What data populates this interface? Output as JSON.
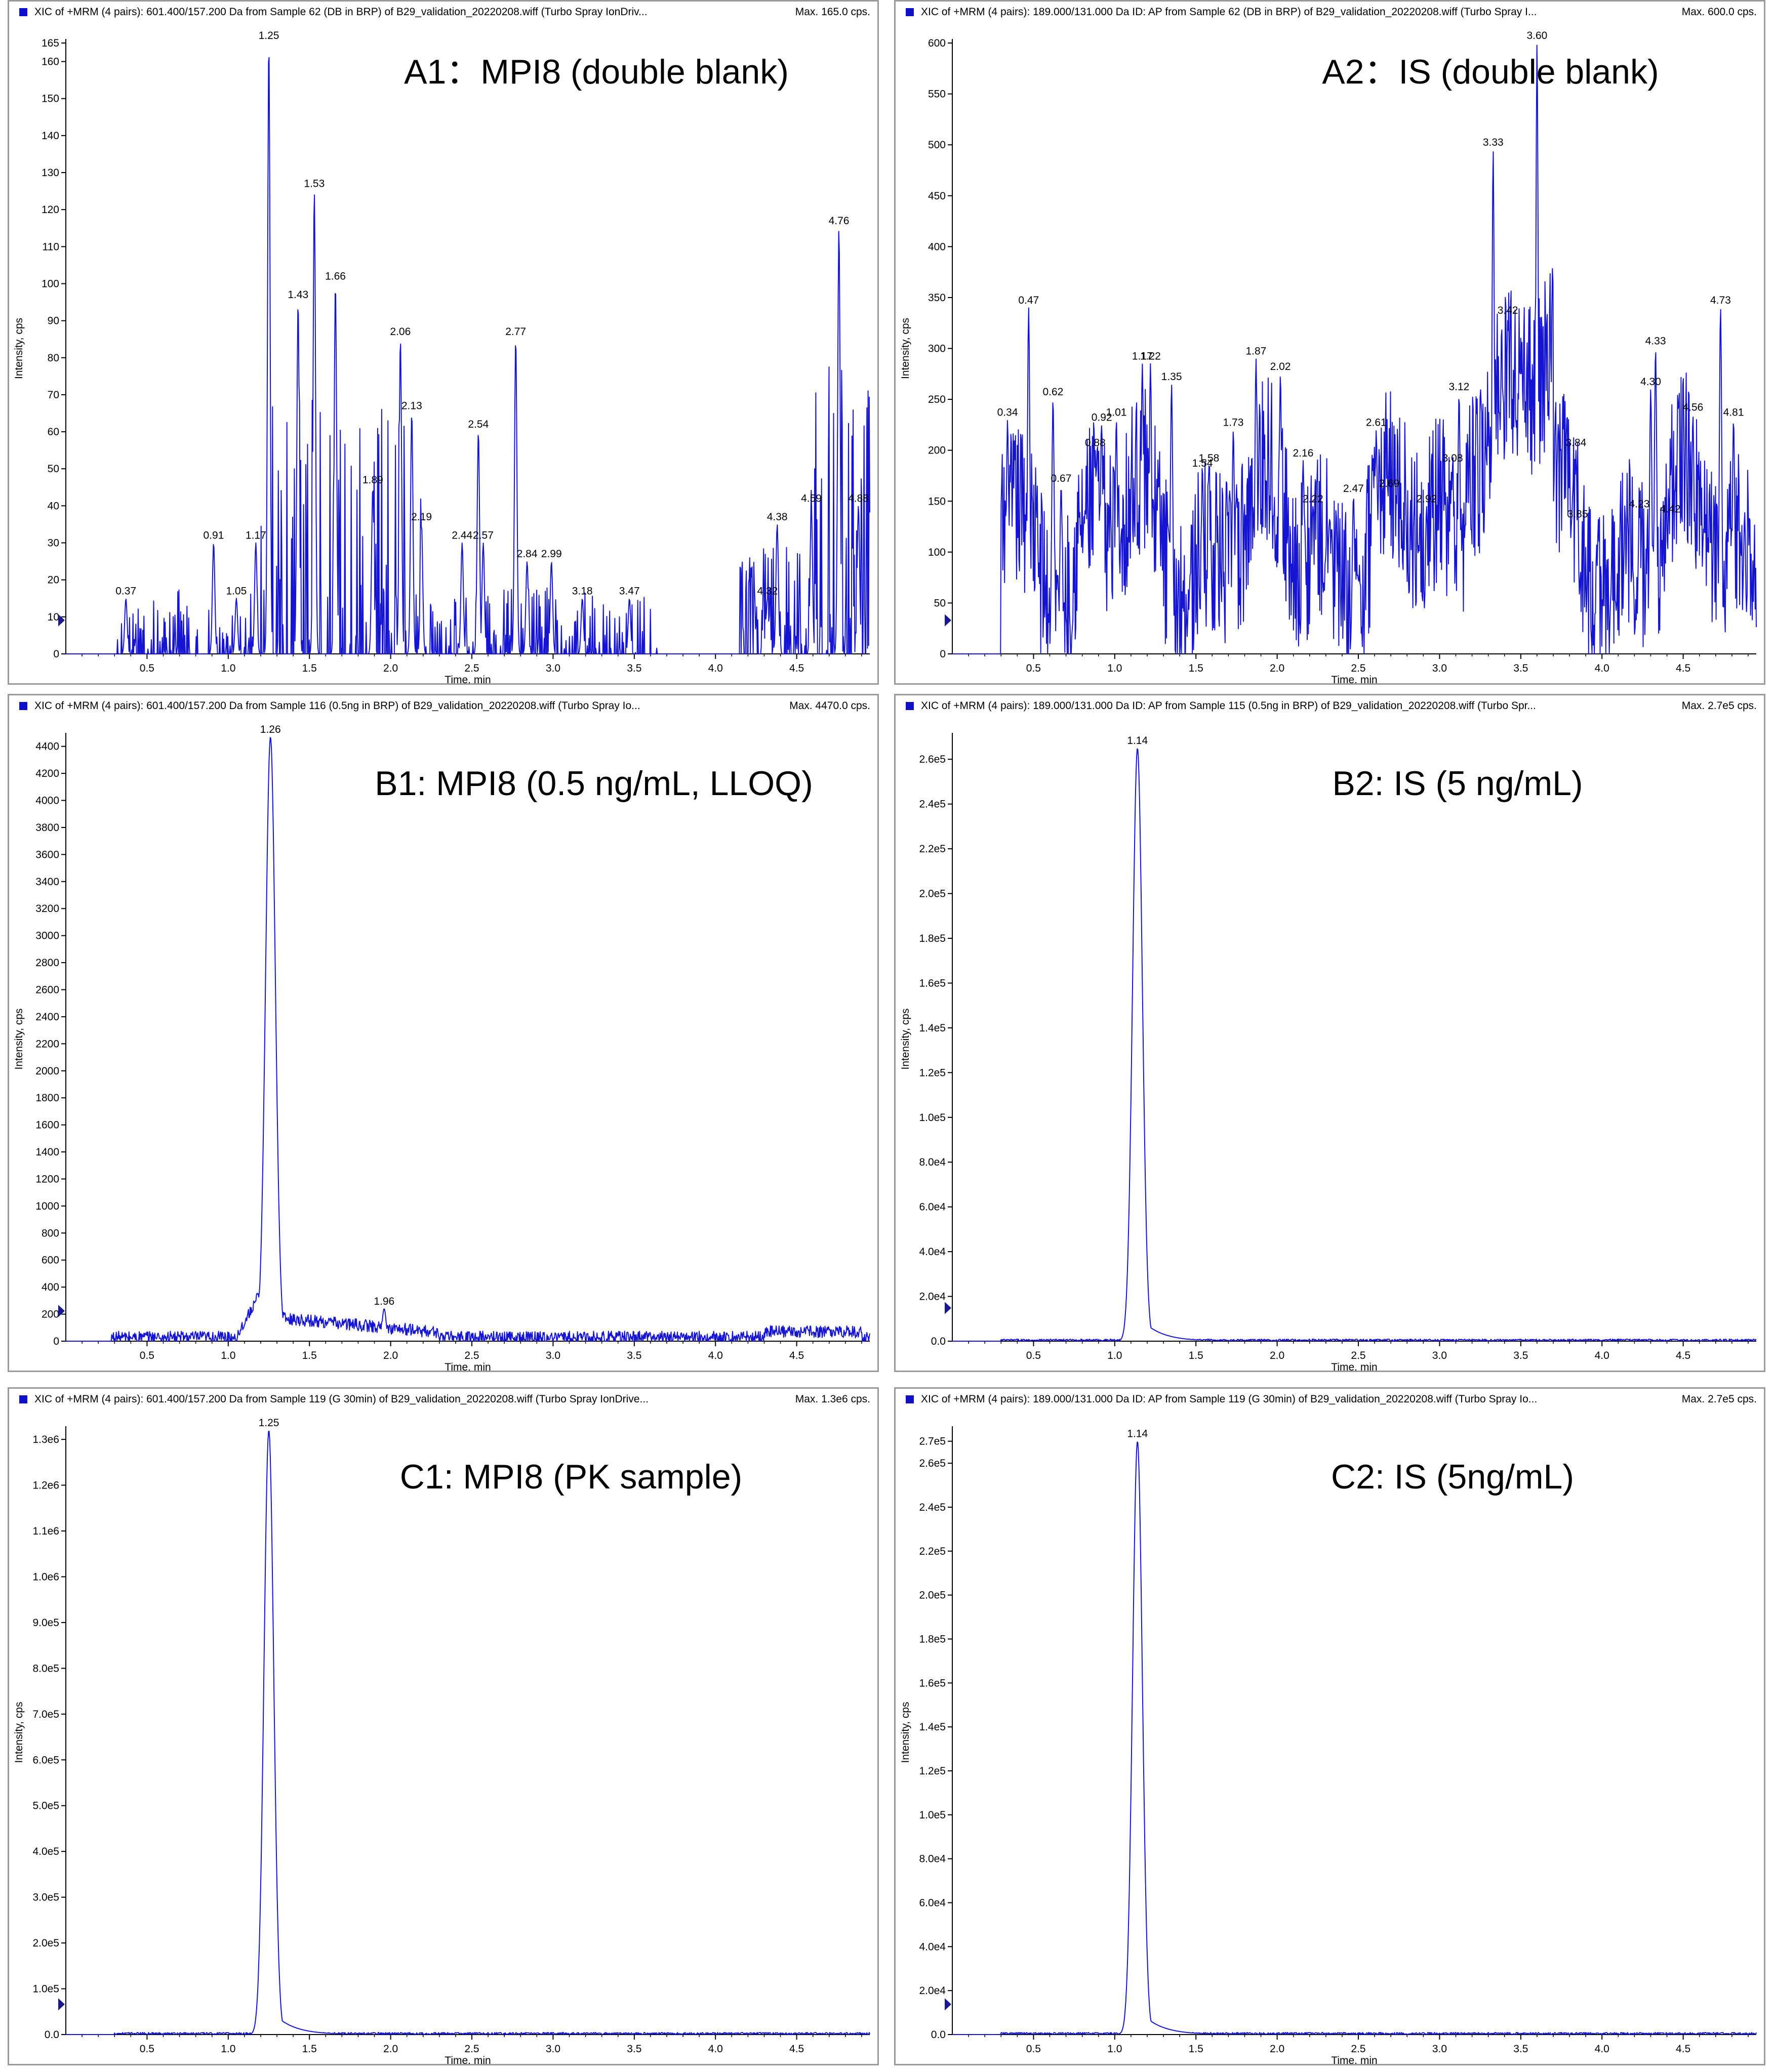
{
  "chart_data": [
    {
      "id": "A1",
      "type": "line",
      "header": "XIC of +MRM (4 pairs): 601.400/157.200 Da  from Sample 62 (DB in BRP) of B29_validation_20220208.wiff (Turbo Spray IonDriv...",
      "max_text": "Max. 165.0 cps.",
      "title": "A1：MPI8 (double blank)",
      "xlabel": "Time, min",
      "ylabel": "Intensity, cps",
      "xlim": [
        0,
        4.95
      ],
      "ylim": [
        0,
        165
      ],
      "x_ticks": [
        "0.5",
        "1.0",
        "1.5",
        "2.0",
        "2.5",
        "3.0",
        "3.5",
        "4.0",
        "4.5"
      ],
      "y_ticks": [
        "0",
        "10",
        "20",
        "30",
        "40",
        "50",
        "60",
        "70",
        "80",
        "90",
        "100",
        "110",
        "120",
        "130",
        "140",
        "150",
        "160",
        "165"
      ],
      "noise": "blank",
      "peaks": [
        {
          "x": 0.37,
          "y": 15,
          "label": "0.37"
        },
        {
          "x": 0.91,
          "y": 30,
          "label": "0.91"
        },
        {
          "x": 1.05,
          "y": 15,
          "label": "1.05"
        },
        {
          "x": 1.17,
          "y": 30,
          "label": "1.17"
        },
        {
          "x": 1.25,
          "y": 165,
          "label": "1.25"
        },
        {
          "x": 1.43,
          "y": 95,
          "label": "1.43"
        },
        {
          "x": 1.53,
          "y": 125,
          "label": "1.53"
        },
        {
          "x": 1.66,
          "y": 100,
          "label": "1.66"
        },
        {
          "x": 1.89,
          "y": 45,
          "label": "1.89"
        },
        {
          "x": 2.06,
          "y": 85,
          "label": "2.06"
        },
        {
          "x": 2.13,
          "y": 65,
          "label": "2.13"
        },
        {
          "x": 2.19,
          "y": 35,
          "label": "2.19"
        },
        {
          "x": 2.44,
          "y": 30,
          "label": "2.44"
        },
        {
          "x": 2.54,
          "y": 60,
          "label": "2.54"
        },
        {
          "x": 2.57,
          "y": 30,
          "label": "2.57"
        },
        {
          "x": 2.77,
          "y": 85,
          "label": "2.77"
        },
        {
          "x": 2.84,
          "y": 25,
          "label": "2.84"
        },
        {
          "x": 2.99,
          "y": 25,
          "label": "2.99"
        },
        {
          "x": 3.18,
          "y": 15,
          "label": "3.18"
        },
        {
          "x": 3.47,
          "y": 15,
          "label": "3.47"
        },
        {
          "x": 4.32,
          "y": 15,
          "label": "4.32"
        },
        {
          "x": 4.38,
          "y": 35,
          "label": "4.38"
        },
        {
          "x": 4.59,
          "y": 40,
          "label": "4.59"
        },
        {
          "x": 4.76,
          "y": 115,
          "label": "4.76"
        },
        {
          "x": 4.88,
          "y": 40,
          "label": "4.88"
        }
      ]
    },
    {
      "id": "A2",
      "type": "line",
      "header": "XIC of +MRM (4 pairs): 189.000/131.000 Da ID: AP from Sample 62 (DB in BRP) of B29_validation_20220208.wiff (Turbo Spray I...",
      "max_text": "Max. 600.0 cps.",
      "title": "A2：IS (double blank)",
      "xlabel": "Time, min",
      "ylabel": "Intensity, cps",
      "xlim": [
        0,
        4.95
      ],
      "ylim": [
        0,
        600
      ],
      "x_ticks": [
        "0.5",
        "1.0",
        "1.5",
        "2.0",
        "2.5",
        "3.0",
        "3.5",
        "4.0",
        "4.5"
      ],
      "y_ticks": [
        "0",
        "50",
        "100",
        "150",
        "200",
        "250",
        "300",
        "350",
        "400",
        "450",
        "500",
        "550",
        "600"
      ],
      "noise": "blank-is",
      "peaks": [
        {
          "x": 0.34,
          "y": 230,
          "label": "0.34"
        },
        {
          "x": 0.47,
          "y": 340,
          "label": "0.47"
        },
        {
          "x": 0.62,
          "y": 250,
          "label": "0.62"
        },
        {
          "x": 0.67,
          "y": 165,
          "label": "0.67"
        },
        {
          "x": 0.88,
          "y": 200,
          "label": "0.88"
        },
        {
          "x": 0.92,
          "y": 225,
          "label": "0.92"
        },
        {
          "x": 1.01,
          "y": 230,
          "label": "1.01"
        },
        {
          "x": 1.17,
          "y": 285,
          "label": "1.17"
        },
        {
          "x": 1.22,
          "y": 285,
          "label": "1.22"
        },
        {
          "x": 1.35,
          "y": 265,
          "label": "1.35"
        },
        {
          "x": 1.54,
          "y": 180,
          "label": "1.54"
        },
        {
          "x": 1.58,
          "y": 185,
          "label": "1.58"
        },
        {
          "x": 1.73,
          "y": 220,
          "label": "1.73"
        },
        {
          "x": 1.87,
          "y": 290,
          "label": "1.87"
        },
        {
          "x": 2.02,
          "y": 275,
          "label": "2.02"
        },
        {
          "x": 2.16,
          "y": 190,
          "label": "2.16"
        },
        {
          "x": 2.22,
          "y": 145,
          "label": "2.22"
        },
        {
          "x": 2.47,
          "y": 155,
          "label": "2.47"
        },
        {
          "x": 2.61,
          "y": 220,
          "label": "2.61"
        },
        {
          "x": 2.69,
          "y": 160,
          "label": "2.69"
        },
        {
          "x": 2.92,
          "y": 145,
          "label": "2.92"
        },
        {
          "x": 3.08,
          "y": 185,
          "label": "3.08"
        },
        {
          "x": 3.12,
          "y": 255,
          "label": "3.12"
        },
        {
          "x": 3.33,
          "y": 495,
          "label": "3.33"
        },
        {
          "x": 3.42,
          "y": 330,
          "label": "3.42"
        },
        {
          "x": 3.6,
          "y": 600,
          "label": "3.60"
        },
        {
          "x": 3.84,
          "y": 200,
          "label": "3.84"
        },
        {
          "x": 3.85,
          "y": 130,
          "label": "3.85"
        },
        {
          "x": 4.23,
          "y": 140,
          "label": "4.23"
        },
        {
          "x": 4.3,
          "y": 260,
          "label": "4.30"
        },
        {
          "x": 4.33,
          "y": 300,
          "label": "4.33"
        },
        {
          "x": 4.42,
          "y": 135,
          "label": "4.42"
        },
        {
          "x": 4.56,
          "y": 235,
          "label": "4.56"
        },
        {
          "x": 4.73,
          "y": 340,
          "label": "4.73"
        },
        {
          "x": 4.81,
          "y": 230,
          "label": "4.81"
        }
      ]
    },
    {
      "id": "B1",
      "type": "line",
      "header": "XIC of +MRM (4 pairs): 601.400/157.200 Da  from Sample 116 (0.5ng in BRP) of B29_validation_20220208.wiff (Turbo Spray Io...",
      "max_text": "Max. 4470.0 cps.",
      "title": "B1: MPI8 (0.5 ng/mL,  LLOQ)",
      "xlabel": "Time, min",
      "ylabel": "Intensity, cps",
      "xlim": [
        0,
        4.95
      ],
      "ylim": [
        0,
        4470
      ],
      "x_ticks": [
        "0.5",
        "1.0",
        "1.5",
        "2.0",
        "2.5",
        "3.0",
        "3.5",
        "4.0",
        "4.5"
      ],
      "y_ticks": [
        "0",
        "200",
        "400",
        "600",
        "800",
        "1000",
        "1200",
        "1400",
        "1600",
        "1800",
        "2000",
        "2200",
        "2400",
        "2600",
        "2800",
        "3000",
        "3200",
        "3400",
        "3600",
        "3800",
        "4000",
        "4200",
        "4400"
      ],
      "noise": "lloq",
      "peaks": [
        {
          "x": 1.26,
          "y": 4470,
          "label": "1.26"
        },
        {
          "x": 1.96,
          "y": 240,
          "label": "1.96"
        }
      ]
    },
    {
      "id": "B2",
      "type": "line",
      "header": "XIC of +MRM (4 pairs): 189.000/131.000 Da ID: AP from Sample 115 (0.5ng in BRP) of B29_validation_20220208.wiff (Turbo Spr...",
      "max_text": "Max. 2.7e5 cps.",
      "title": "B2: IS (5 ng/mL)",
      "xlabel": "Time, min",
      "ylabel": "Intensity, cps",
      "xlim": [
        0,
        4.95
      ],
      "ylim": [
        0,
        270000
      ],
      "x_ticks": [
        "0.5",
        "1.0",
        "1.5",
        "2.0",
        "2.5",
        "3.0",
        "3.5",
        "4.0",
        "4.5"
      ],
      "y_ticks": [
        "0.0",
        "2.0e4",
        "4.0e4",
        "6.0e4",
        "8.0e4",
        "1.0e5",
        "1.2e5",
        "1.4e5",
        "1.6e5",
        "1.8e5",
        "2.0e5",
        "2.2e5",
        "2.4e5",
        "2.6e5"
      ],
      "noise": "sharp",
      "peaks": [
        {
          "x": 1.14,
          "y": 265000,
          "label": "1.14"
        }
      ]
    },
    {
      "id": "C1",
      "type": "line",
      "header": "XIC of +MRM (4 pairs): 601.400/157.200 Da  from Sample 119 (G 30min) of B29_validation_20220208.wiff (Turbo Spray IonDrive...",
      "max_text": "Max. 1.3e6 cps.",
      "title": "C1: MPI8 (PK sample)",
      "xlabel": "Time, min",
      "ylabel": "Intensity, cps",
      "xlim": [
        0,
        4.95
      ],
      "ylim": [
        0,
        1320000
      ],
      "x_ticks": [
        "0.5",
        "1.0",
        "1.5",
        "2.0",
        "2.5",
        "3.0",
        "3.5",
        "4.0",
        "4.5"
      ],
      "y_ticks": [
        "0.0",
        "1.0e5",
        "2.0e5",
        "3.0e5",
        "4.0e5",
        "5.0e5",
        "6.0e5",
        "7.0e5",
        "8.0e5",
        "9.0e5",
        "1.0e6",
        "1.1e6",
        "1.2e6",
        "1.3e6"
      ],
      "noise": "sharp",
      "peaks": [
        {
          "x": 1.25,
          "y": 1320000,
          "label": "1.25"
        }
      ]
    },
    {
      "id": "C2",
      "type": "line",
      "header": "XIC of +MRM (4 pairs): 189.000/131.000 Da ID: AP from Sample 119 (G 30min) of B29_validation_20220208.wiff (Turbo Spray Io...",
      "max_text": "Max. 2.7e5 cps.",
      "title": "C2: IS (5ng/mL)",
      "xlabel": "Time, min",
      "ylabel": "Intensity, cps",
      "xlim": [
        0,
        4.95
      ],
      "ylim": [
        0,
        275000
      ],
      "x_ticks": [
        "0.5",
        "1.0",
        "1.5",
        "2.0",
        "2.5",
        "3.0",
        "3.5",
        "4.0",
        "4.5"
      ],
      "y_ticks": [
        "0.0",
        "2.0e4",
        "4.0e4",
        "6.0e4",
        "8.0e4",
        "1.0e5",
        "1.2e5",
        "1.4e5",
        "1.6e5",
        "1.8e5",
        "2.0e5",
        "2.2e5",
        "2.4e5",
        "2.6e5",
        "2.7e5"
      ],
      "noise": "sharp",
      "peaks": [
        {
          "x": 1.14,
          "y": 270000,
          "label": "1.14"
        }
      ]
    }
  ],
  "colors": {
    "trace": "#1414d2",
    "marker": "#1a1a8c",
    "border": "#9a9a9a"
  }
}
